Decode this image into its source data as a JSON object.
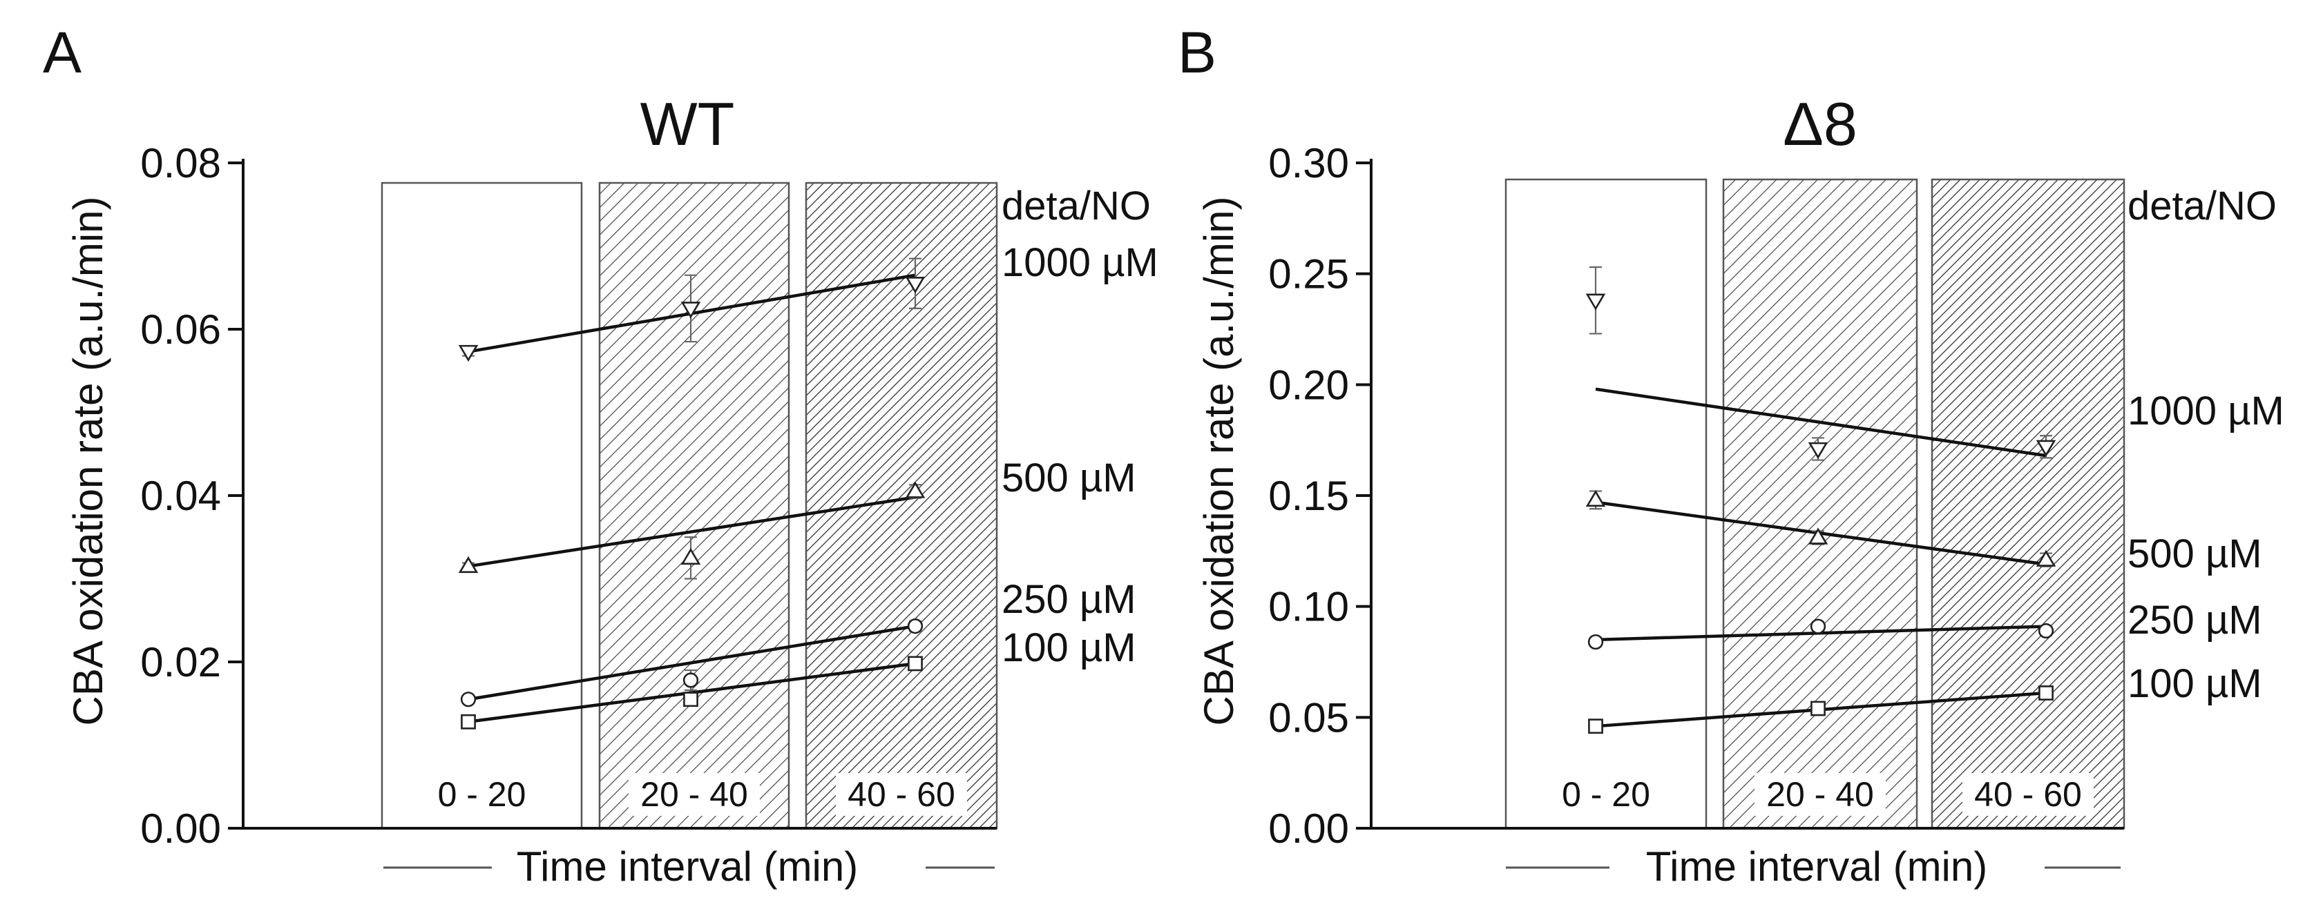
{
  "chart_data": [
    {
      "type": "line",
      "panel_label": "A",
      "title": "WT",
      "xlabel": "Time interval (min)",
      "ylabel": "CBA oxidation rate (a.u./min)",
      "ylim": [
        0,
        0.08
      ],
      "yticks": [
        "0.00",
        "0.02",
        "0.04",
        "0.06",
        "0.08"
      ],
      "ytick_values": [
        0,
        0.02,
        0.04,
        0.06,
        0.08
      ],
      "categories": [
        "0 - 20",
        "20 - 40",
        "40 - 60"
      ],
      "legend_title": "deta/NO",
      "series": [
        {
          "name": "1000 µM",
          "marker": "triangle-down",
          "values": [
            0.0573,
            0.0625,
            0.0655
          ],
          "errors": [
            0.0005,
            0.004,
            0.003
          ],
          "fit": [
            0.0573,
            0.0665
          ]
        },
        {
          "name": "500 µM",
          "marker": "triangle-up",
          "values": [
            0.0315,
            0.0325,
            0.0405
          ],
          "errors": [
            0.0004,
            0.0025,
            0.0008
          ],
          "fit": [
            0.0315,
            0.0398
          ]
        },
        {
          "name": "250 µM",
          "marker": "circle",
          "values": [
            0.0155,
            0.0178,
            0.0243
          ],
          "errors": [
            0.0004,
            0.0012,
            0.0006
          ],
          "fit": [
            0.0155,
            0.0243
          ]
        },
        {
          "name": "100 µM",
          "marker": "square",
          "values": [
            0.0128,
            0.0155,
            0.0198
          ],
          "errors": [
            0.0004,
            0.0008,
            0.0006
          ],
          "fit": [
            0.0128,
            0.0198
          ]
        }
      ]
    },
    {
      "type": "line",
      "panel_label": "B",
      "title": "Δ8",
      "xlabel": "Time interval (min)",
      "ylabel": "CBA oxidation rate (a.u./min)",
      "ylim": [
        0,
        0.3
      ],
      "yticks": [
        "0.00",
        "0.05",
        "0.10",
        "0.15",
        "0.20",
        "0.25",
        "0.30"
      ],
      "ytick_values": [
        0,
        0.05,
        0.1,
        0.15,
        0.2,
        0.25,
        0.3
      ],
      "categories": [
        "0 - 20",
        "20 - 40",
        "40 - 60"
      ],
      "legend_title": "deta/NO",
      "series": [
        {
          "name": "1000 µM",
          "marker": "triangle-down",
          "values": [
            0.238,
            0.171,
            0.172
          ],
          "errors": [
            0.015,
            0.005,
            0.005
          ],
          "fit": [
            0.198,
            0.168
          ]
        },
        {
          "name": "500 µM",
          "marker": "triangle-up",
          "values": [
            0.148,
            0.131,
            0.121
          ],
          "errors": [
            0.004,
            0.003,
            0.003
          ],
          "fit": [
            0.147,
            0.119
          ]
        },
        {
          "name": "250 µM",
          "marker": "circle",
          "values": [
            0.084,
            0.091,
            0.089
          ],
          "errors": [
            0.002,
            0.002,
            0.002
          ],
          "fit": [
            0.085,
            0.091
          ]
        },
        {
          "name": "100 µM",
          "marker": "square",
          "values": [
            0.046,
            0.054,
            0.061
          ],
          "errors": [
            0.002,
            0.002,
            0.002
          ],
          "fit": [
            0.046,
            0.061
          ]
        }
      ]
    }
  ]
}
